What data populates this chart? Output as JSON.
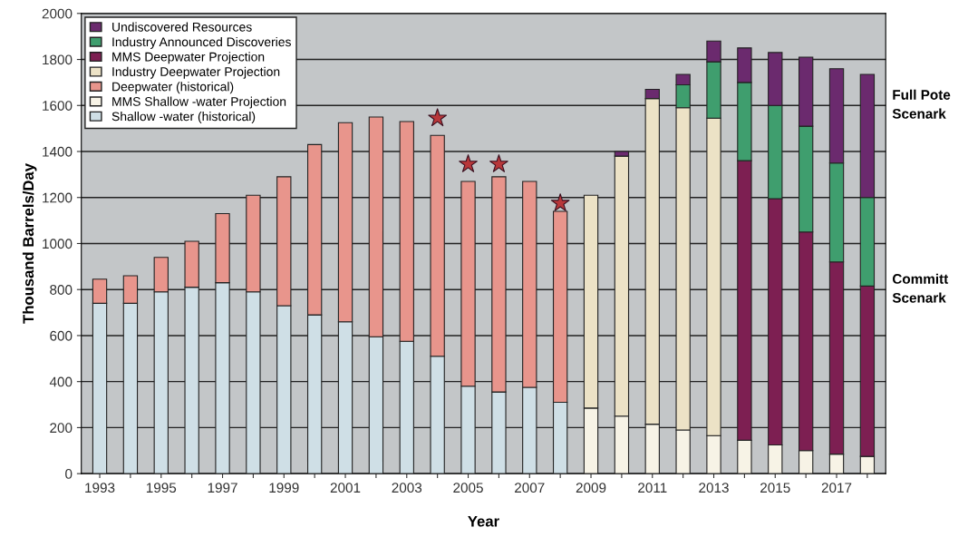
{
  "chart_data": {
    "type": "bar",
    "stacked": true,
    "xlabel": "Year",
    "ylabel": "Thousand Barrels/Day",
    "categories": [
      "1993",
      null,
      "1995",
      null,
      "1997",
      null,
      "1999",
      null,
      "2001",
      null,
      "2003",
      null,
      "2005",
      null,
      "2007",
      null,
      "2009",
      null,
      "2011",
      null,
      "2013",
      null,
      "2015",
      null,
      "2017",
      null
    ],
    "series": [
      {
        "name": "Shallow -water (historical)",
        "color": "#cfdfe6",
        "values": [
          740,
          740,
          790,
          810,
          830,
          790,
          730,
          690,
          660,
          595,
          575,
          510,
          380,
          355,
          375,
          310,
          null,
          null,
          null,
          null,
          null,
          null,
          null,
          null,
          null,
          null
        ]
      },
      {
        "name": "MMS Shallow -water Projection",
        "color": "#f7f3e6",
        "values": [
          null,
          null,
          null,
          null,
          null,
          null,
          null,
          null,
          null,
          null,
          null,
          null,
          null,
          null,
          null,
          null,
          285,
          250,
          215,
          190,
          165,
          145,
          125,
          100,
          85,
          75
        ]
      },
      {
        "name": "Deepwater (historical)",
        "color": "#e8958c",
        "values": [
          105,
          120,
          150,
          200,
          300,
          420,
          560,
          740,
          865,
          955,
          955,
          960,
          890,
          935,
          895,
          830,
          null,
          null,
          null,
          null,
          null,
          null,
          null,
          null,
          null,
          null
        ]
      },
      {
        "name": "Industry Deepwater Projection",
        "color": "#ece2c6",
        "values": [
          null,
          null,
          null,
          null,
          null,
          null,
          null,
          null,
          null,
          null,
          null,
          null,
          null,
          null,
          null,
          null,
          925,
          1130,
          1415,
          1400,
          1380,
          null,
          null,
          null,
          null,
          null
        ]
      },
      {
        "name": "MMS Deepwater Projection",
        "color": "#7d1f52",
        "values": [
          null,
          null,
          null,
          null,
          null,
          null,
          null,
          null,
          null,
          null,
          null,
          null,
          null,
          null,
          null,
          null,
          null,
          null,
          null,
          null,
          null,
          1215,
          1070,
          950,
          835,
          740
        ]
      },
      {
        "name": "Industry Announced Discoveries",
        "color": "#3f9e6e",
        "values": [
          null,
          null,
          null,
          null,
          null,
          null,
          null,
          null,
          null,
          null,
          null,
          null,
          null,
          null,
          null,
          null,
          null,
          null,
          null,
          100,
          245,
          340,
          405,
          460,
          430,
          385
        ]
      },
      {
        "name": "Undiscovered Resources",
        "color": "#6b2a6e",
        "values": [
          null,
          null,
          null,
          null,
          null,
          null,
          null,
          null,
          null,
          null,
          null,
          null,
          null,
          null,
          null,
          null,
          null,
          20,
          40,
          45,
          90,
          150,
          230,
          300,
          410,
          535
        ]
      },
      {
        "type": "scatter",
        "color": "#b8373a",
        "marker": "star",
        "values": [
          null,
          null,
          null,
          null,
          null,
          null,
          null,
          null,
          null,
          null,
          null,
          1545,
          1345,
          1345,
          null,
          1175,
          null,
          null,
          null,
          null,
          null,
          null,
          null,
          null,
          null,
          null
        ]
      }
    ],
    "ylim": [
      0,
      2000
    ],
    "yticks": [
      0,
      200,
      400,
      600,
      800,
      1000,
      1200,
      1400,
      1600,
      1800,
      2000
    ],
    "grid": "y",
    "legend": "top left",
    "annotations": [
      "Full Pote\nScenark",
      "Committ\nScenark"
    ]
  }
}
